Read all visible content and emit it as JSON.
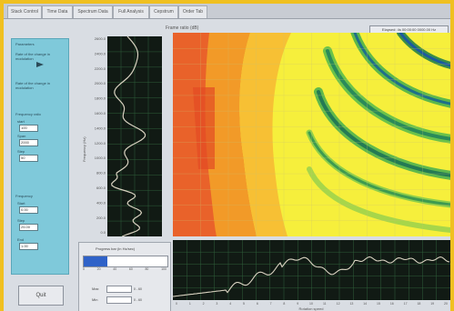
{
  "tabs": [
    "Stack Control",
    "Time Data",
    "Spectrum Data",
    "Full Analysis",
    "Cepstrum",
    "Order Tab"
  ],
  "plot_title": "Frame ratio (dB)",
  "status_text": "Elapsed: 4s 00:00:00 0000.00 Hz",
  "left_panel": {
    "title_1": "Parameters",
    "label_1": "Rate of the change in modulation",
    "label_2": "Rate of the change in modulation",
    "group_a_title": "Frequency ratio",
    "group_a_fields": [
      {
        "label": "start",
        "value": "100"
      },
      {
        "label": "Span",
        "value": "2000"
      },
      {
        "label": "Step",
        "value": "50"
      }
    ],
    "group_b_title": "Frequency",
    "group_b_fields": [
      {
        "label": "Start",
        "value": "0.00"
      },
      {
        "label": "Step",
        "value": "25.00"
      },
      {
        "label": "End",
        "value": "1.00"
      }
    ]
  },
  "ok_button": "Quit",
  "yaxis_ticks": [
    "2600.0",
    "2400.0",
    "2200.0",
    "2000.0",
    "1800.0",
    "1600.0",
    "1400.0",
    "1200.0",
    "1000.0",
    "800.0",
    "600.0",
    "400.0",
    "200.0",
    "0.0"
  ],
  "ylabel": "Frequency (Hz)",
  "progress": {
    "title": "Progress bar (in Hz/sec)",
    "fraction": 0.28,
    "ticks": [
      "0",
      "20",
      "40",
      "60",
      "80",
      "100"
    ],
    "field_1_label": "Max",
    "field_1_unit": "0 - 60",
    "field_2_label": "Min",
    "field_2_unit": "0 - 60"
  },
  "bottom_xlabel": "Rotation speed",
  "bottom_xticks": [
    "0",
    "1",
    "2",
    "3",
    "4",
    "5",
    "6",
    "7",
    "8",
    "9",
    "10",
    "11",
    "12",
    "13",
    "14",
    "15",
    "16",
    "17",
    "18",
    "19",
    "20"
  ],
  "colors": {
    "panel": "#7fc9da",
    "plot_bg": "#111a14",
    "grid": "#2f5f3a",
    "trace": "#d8d2c0",
    "accent": "#f0c020",
    "background": "#2c4f9c",
    "progress": "#2f62c8"
  }
}
